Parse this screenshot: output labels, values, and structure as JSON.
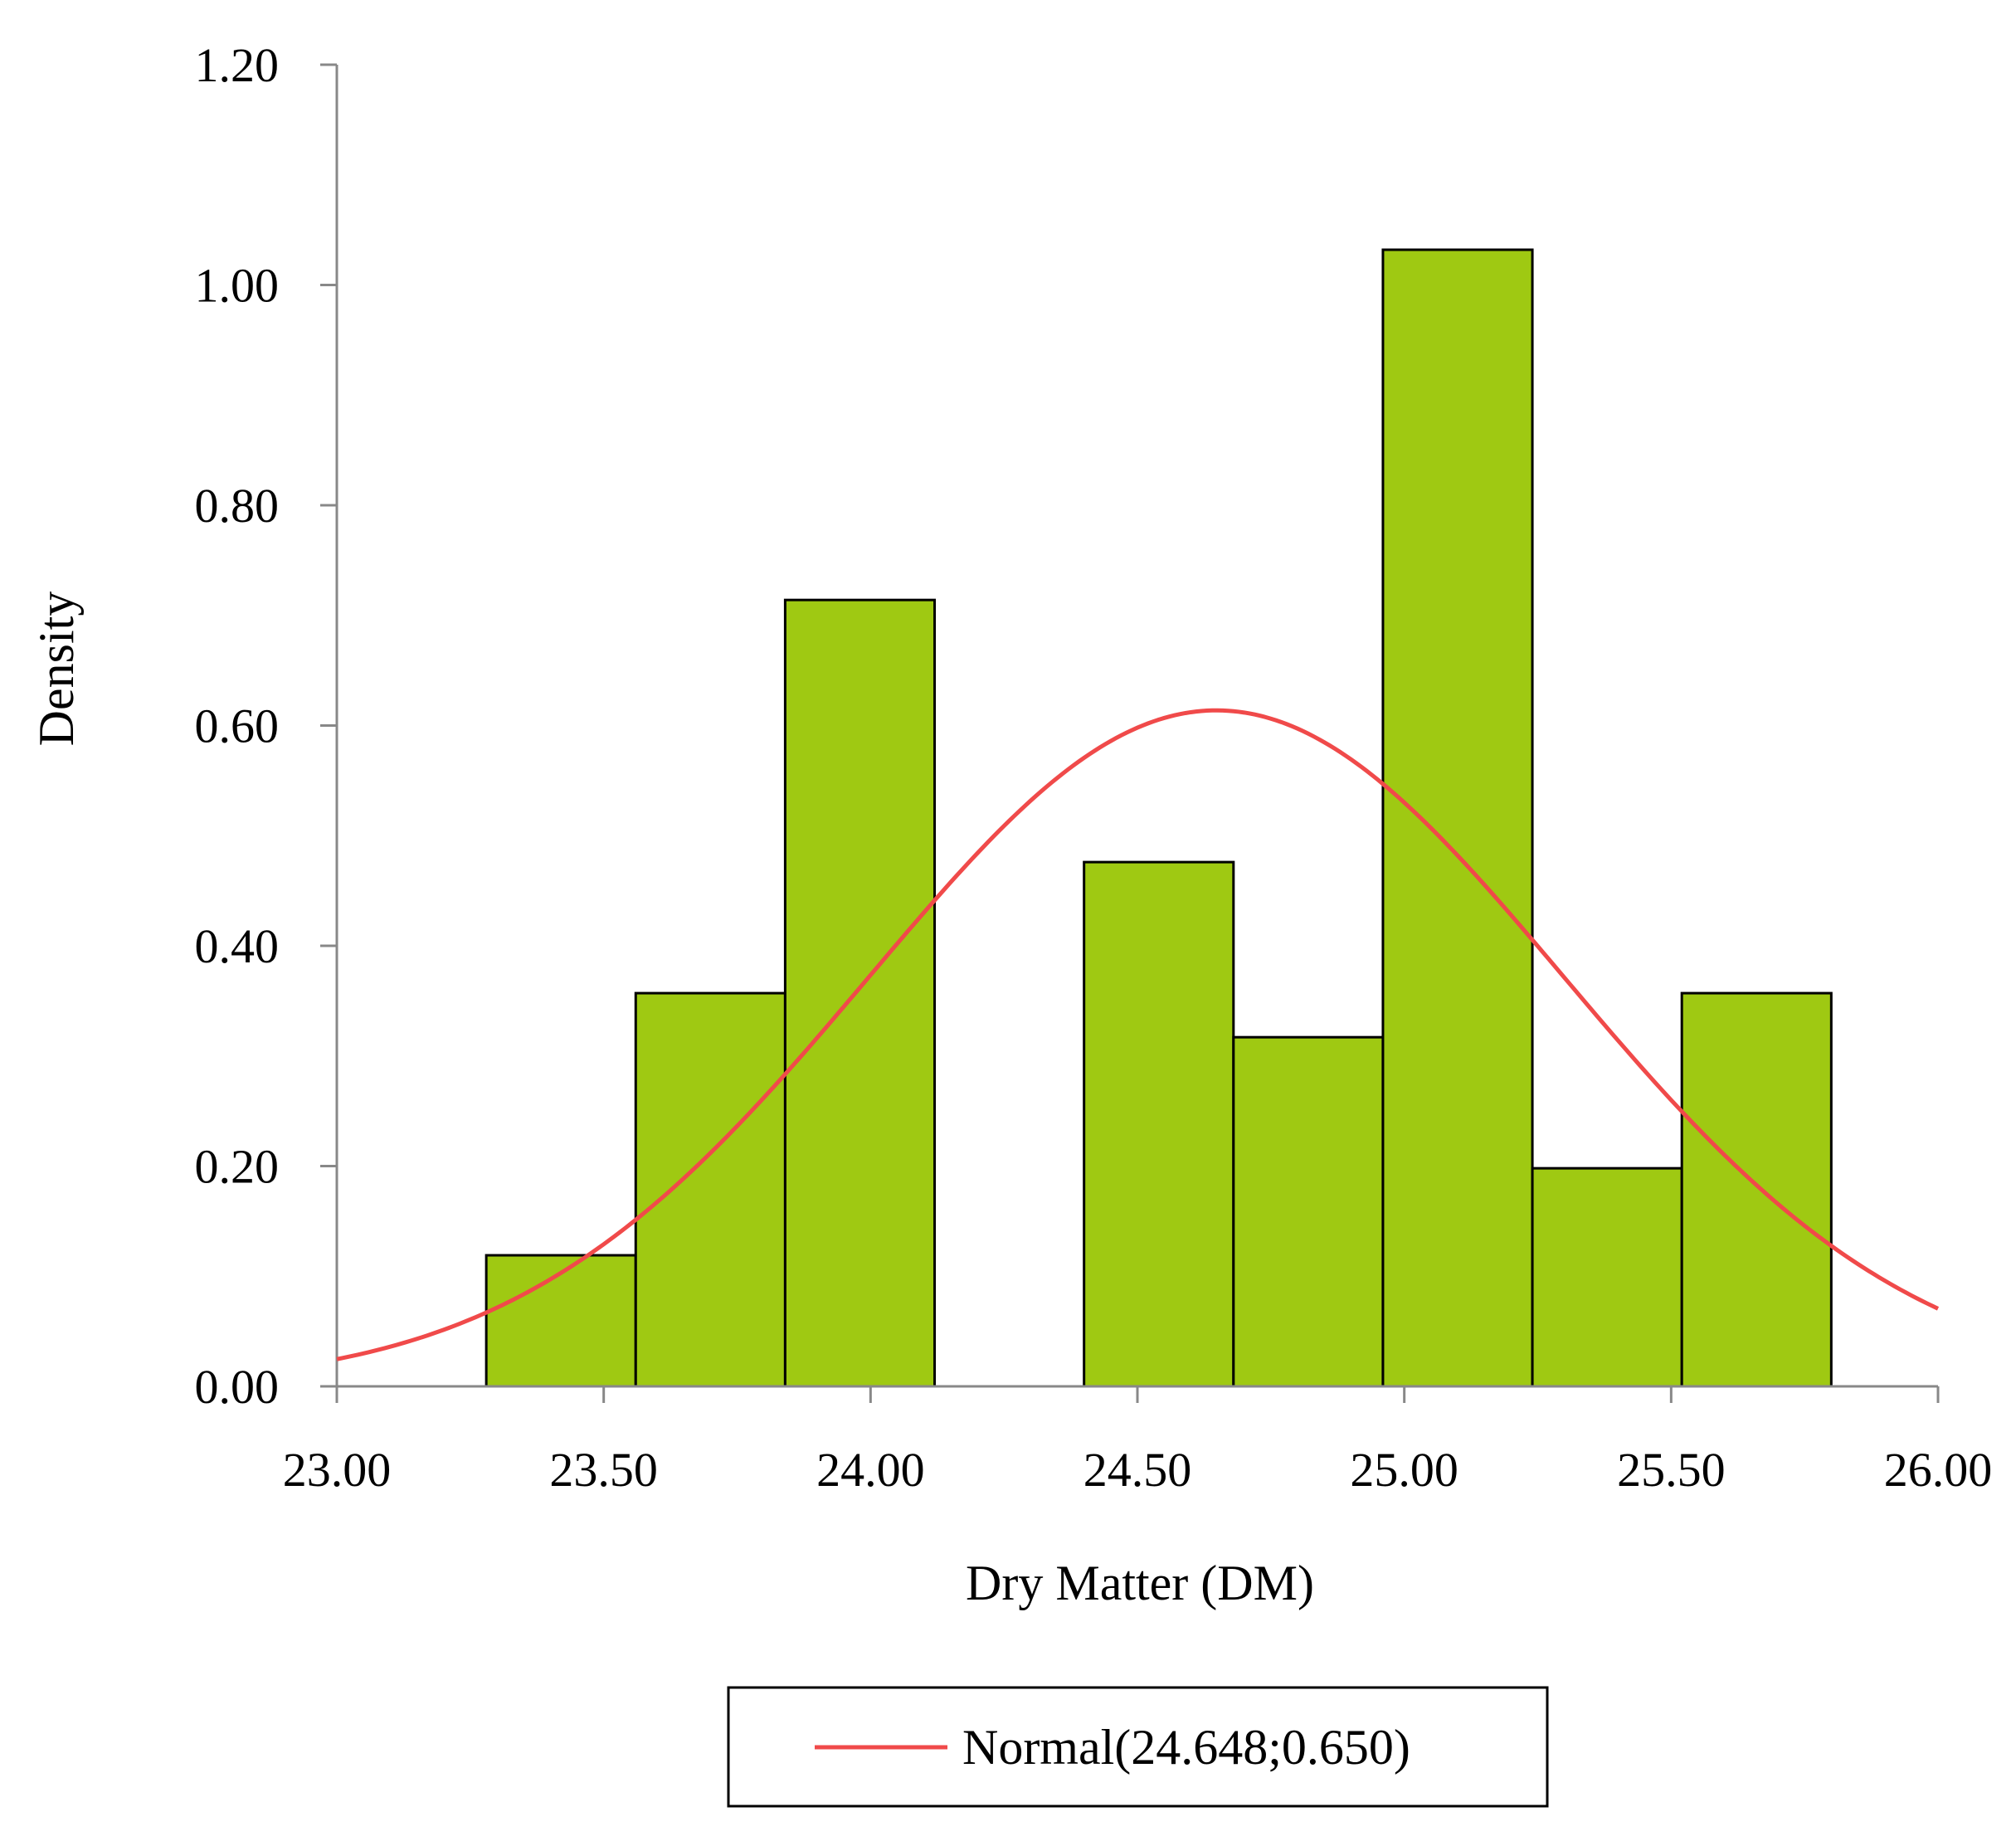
{
  "chart_data": {
    "type": "bar",
    "xlabel": "Dry Matter (DM)",
    "ylabel": "Density",
    "xlim": [
      23.0,
      26.0
    ],
    "ylim": [
      0.0,
      1.2
    ],
    "x_ticks": [
      "23.00",
      "23.50",
      "24.00",
      "24.50",
      "25.00",
      "25.50",
      "26.00"
    ],
    "y_ticks": [
      "0.00",
      "0.20",
      "0.40",
      "0.60",
      "0.80",
      "1.00",
      "1.20"
    ],
    "grid": false,
    "legend_position": "bottom",
    "bins": [
      {
        "start": 23.0,
        "end": 23.28,
        "density": 0.0
      },
      {
        "start": 23.28,
        "end": 23.56,
        "density": 0.119
      },
      {
        "start": 23.56,
        "end": 23.84,
        "density": 0.357
      },
      {
        "start": 23.84,
        "end": 24.12,
        "density": 0.714
      },
      {
        "start": 24.12,
        "end": 24.4,
        "density": 0.0
      },
      {
        "start": 24.4,
        "end": 24.68,
        "density": 0.476
      },
      {
        "start": 24.68,
        "end": 24.96,
        "density": 0.317
      },
      {
        "start": 24.96,
        "end": 25.24,
        "density": 1.032
      },
      {
        "start": 25.24,
        "end": 25.52,
        "density": 0.198
      },
      {
        "start": 25.52,
        "end": 25.8,
        "density": 0.357
      }
    ],
    "series": [
      {
        "name": "Normal(24.648;0.650)",
        "type": "normal_pdf",
        "mean": 24.648,
        "sd": 0.65
      }
    ],
    "colors": {
      "bar_fill": "#9FC912",
      "bar_stroke": "#000000",
      "curve": "#F04A4A",
      "axis": "#888888"
    }
  }
}
